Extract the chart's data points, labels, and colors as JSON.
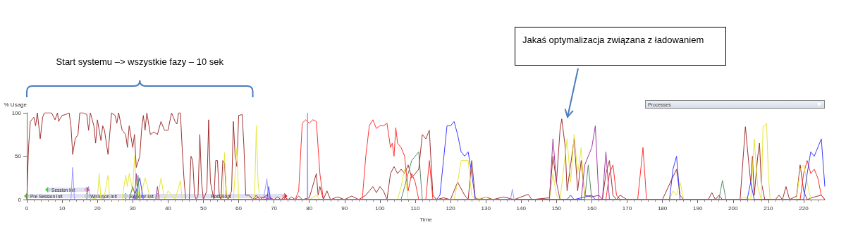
{
  "chart_data": {
    "type": "line",
    "xlabel": "Time",
    "ylabel": "% Usage",
    "xlim": [
      0,
      226
    ],
    "ylim": [
      0,
      100
    ],
    "xticks": [
      0,
      10,
      20,
      30,
      40,
      50,
      60,
      70,
      80,
      90,
      100,
      110,
      120,
      130,
      140,
      150,
      160,
      170,
      180,
      190,
      200,
      210,
      220
    ],
    "yticks": [
      0,
      50,
      100
    ],
    "grid": false,
    "marker": "none",
    "line_style": "solid",
    "series": [
      {
        "color": "#a03232",
        "x": [
          0,
          0.5,
          1,
          2,
          2.5,
          3,
          3.8,
          4.5,
          5,
          6,
          7,
          8,
          8.7,
          9,
          10,
          11,
          12,
          12.5,
          13,
          13.7,
          14.5,
          15,
          16,
          17,
          17.5,
          18,
          19,
          19.5,
          20,
          21,
          21.5,
          22,
          23,
          24,
          25,
          25.5,
          26,
          27,
          28,
          28.5,
          29,
          30,
          30.5,
          31,
          32,
          32.5,
          33,
          33.5,
          34,
          35,
          36,
          37,
          38,
          39,
          40,
          41,
          42,
          42.5,
          43,
          43.5,
          44,
          44.5,
          45,
          46,
          46.5,
          47,
          47.5,
          48,
          48.5,
          49,
          49.5,
          50,
          51,
          51.5,
          52,
          53,
          53.5,
          54,
          54.5,
          55,
          55.5,
          56,
          56.5,
          57,
          58,
          58.5,
          59,
          59.5,
          60,
          61,
          61.5,
          62,
          63,
          64,
          65,
          66,
          68,
          69,
          70,
          71,
          72,
          73,
          74,
          75,
          76,
          77,
          78,
          80,
          82,
          82.5,
          83,
          84,
          85,
          86,
          88,
          90,
          92,
          94,
          96,
          97,
          98,
          99,
          100,
          101,
          102,
          103,
          104,
          105,
          106,
          107,
          108,
          109,
          110,
          111,
          112,
          113,
          114,
          115,
          116,
          118,
          120,
          122,
          124,
          125,
          126,
          127,
          128,
          130,
          132,
          135,
          138,
          142,
          143,
          148,
          149,
          150,
          151,
          151.5,
          152.5,
          153,
          154,
          155,
          156,
          157,
          158,
          160,
          162,
          163,
          164,
          165,
          166,
          167,
          168,
          170,
          175,
          180,
          184,
          185,
          186,
          193,
          194,
          195,
          196,
          197,
          202,
          203.5,
          204.5,
          205,
          205.5,
          206,
          207,
          207.5,
          208,
          209,
          212,
          213,
          214,
          215,
          216,
          218,
          219,
          220,
          221,
          223,
          225,
          226
        ],
        "values": [
          0,
          60,
          90,
          95,
          85,
          100,
          70,
          95,
          100,
          100,
          100,
          92,
          100,
          90,
          97,
          98,
          100,
          85,
          52,
          70,
          75,
          100,
          100,
          98,
          80,
          100,
          85,
          65,
          92,
          68,
          85,
          80,
          52,
          100,
          97,
          88,
          100,
          80,
          75,
          60,
          85,
          60,
          75,
          37,
          50,
          80,
          97,
          80,
          100,
          75,
          78,
          75,
          90,
          80,
          80,
          100,
          90,
          87,
          100,
          100,
          60,
          25,
          0,
          0,
          50,
          45,
          5,
          0,
          5,
          75,
          20,
          0,
          10,
          92,
          20,
          0,
          45,
          45,
          5,
          0,
          45,
          42,
          5,
          0,
          10,
          90,
          50,
          38,
          97,
          98,
          60,
          5,
          5,
          0,
          5,
          0,
          5,
          2,
          0,
          3,
          0,
          3,
          0,
          3,
          0,
          4,
          0,
          2,
          30,
          5,
          15,
          0,
          10,
          0,
          3,
          0,
          4,
          0,
          5,
          10,
          15,
          8,
          15,
          10,
          0,
          30,
          38,
          30,
          35,
          30,
          40,
          25,
          30,
          35,
          75,
          70,
          80,
          5,
          0,
          2,
          0,
          20,
          5,
          0,
          45,
          2,
          0,
          3,
          0,
          3,
          0,
          6,
          0,
          2,
          50,
          20,
          80,
          93,
          60,
          10,
          40,
          70,
          10,
          45,
          5,
          3,
          5,
          0,
          30,
          45,
          5,
          0,
          5,
          0,
          0,
          0,
          35,
          5,
          0,
          0,
          8,
          0,
          5,
          0,
          0,
          84,
          40,
          20,
          50,
          5,
          50,
          65,
          20,
          0,
          0,
          5,
          0,
          15,
          0,
          4,
          40,
          10,
          0,
          3,
          5,
          0
        ]
      },
      {
        "color": "#ff3333",
        "x": [
          0,
          64,
          66,
          70,
          76,
          77,
          78,
          79,
          80,
          81,
          82,
          83,
          84,
          95,
          96,
          97,
          98,
          99,
          100,
          101,
          102,
          103,
          103.5,
          104,
          104.5,
          105,
          106,
          107,
          108,
          109,
          110,
          111,
          113,
          114,
          115,
          160,
          164,
          165,
          166,
          167,
          168,
          173,
          174.5,
          175.5,
          200,
          219,
          220,
          221,
          222,
          223,
          224,
          225,
          226
        ],
        "values": [
          0,
          0,
          3,
          0,
          0,
          10,
          88,
          92,
          88,
          92,
          90,
          30,
          0,
          0,
          50,
          85,
          92,
          82,
          85,
          85,
          88,
          60,
          65,
          50,
          83,
          65,
          60,
          50,
          10,
          30,
          20,
          0,
          0,
          45,
          0,
          0,
          0,
          30,
          40,
          5,
          0,
          0,
          60,
          0,
          0,
          0,
          30,
          45,
          30,
          35,
          25,
          5,
          0
        ]
      },
      {
        "color": "#e6e63c",
        "x": [
          18,
          20,
          20.5,
          21,
          22,
          23,
          23.5,
          27,
          28,
          28.5,
          29,
          30,
          30.5,
          31,
          32,
          33.5,
          34,
          35,
          37,
          38,
          39,
          40,
          41,
          42,
          43.5,
          44,
          48,
          55.5,
          56,
          56.5,
          57,
          58.5,
          59.5,
          60,
          64.5,
          65,
          65.5,
          66,
          80,
          82,
          83,
          105,
          106,
          107,
          108,
          121,
          122,
          123,
          124,
          125,
          126,
          127,
          130,
          131,
          148,
          149,
          150,
          151,
          153,
          154,
          155,
          156,
          157,
          158,
          182,
          183,
          184,
          185,
          186,
          202,
          203,
          205,
          206,
          207,
          208,
          208.5,
          209,
          209.5,
          210,
          210.5,
          218,
          219,
          220,
          221,
          222
        ],
        "values": [
          0,
          2,
          30,
          0,
          5,
          28,
          0,
          0,
          28,
          15,
          30,
          10,
          50,
          20,
          0,
          25,
          18,
          0,
          0,
          25,
          0,
          10,
          5,
          0,
          22,
          0,
          0,
          0,
          54,
          10,
          0,
          0,
          60,
          0,
          0,
          85,
          20,
          0,
          0,
          5,
          0,
          0,
          15,
          35,
          0,
          0,
          20,
          45,
          45,
          45,
          5,
          0,
          3,
          0,
          0,
          30,
          5,
          0,
          70,
          20,
          75,
          30,
          60,
          0,
          0,
          10,
          5,
          20,
          0,
          0,
          3,
          0,
          70,
          15,
          0,
          85,
          85,
          88,
          30,
          0,
          0,
          35,
          40,
          20,
          0
        ]
      },
      {
        "color": "#3c3cff",
        "x": [
          30,
          31,
          32,
          33,
          68,
          68.5,
          69,
          116,
          117,
          118,
          119,
          120,
          121,
          122,
          123,
          124,
          125,
          126,
          127,
          153,
          154,
          155,
          160,
          161,
          182,
          183,
          184,
          185,
          204,
          205,
          206,
          220,
          221,
          222,
          223,
          224,
          225,
          226
        ],
        "values": [
          0,
          10,
          25,
          0,
          0,
          15,
          0,
          0,
          5,
          45,
          85,
          85,
          90,
          75,
          55,
          50,
          55,
          30,
          0,
          0,
          5,
          0,
          5,
          0,
          0,
          35,
          50,
          0,
          0,
          20,
          0,
          0,
          30,
          55,
          50,
          60,
          70,
          15
        ]
      },
      {
        "color": "#a03ca0",
        "x": [
          30.5,
          31,
          31.5,
          36.5,
          37,
          37.5,
          148,
          149,
          150,
          151,
          157,
          158,
          159,
          160,
          161,
          162,
          163,
          164,
          165
        ],
        "values": [
          0,
          30,
          0,
          0,
          15,
          0,
          0,
          70,
          20,
          0,
          0,
          40,
          50,
          60,
          85,
          0,
          0,
          55,
          0
        ]
      },
      {
        "color": "#5a8a6a",
        "x": [
          29,
          30,
          31,
          31.5,
          32,
          106,
          107,
          108,
          109,
          110,
          111,
          112,
          158,
          159,
          160,
          196,
          197,
          198
        ],
        "values": [
          0,
          15,
          0,
          28,
          0,
          0,
          15,
          30,
          45,
          50,
          55,
          0,
          0,
          40,
          0,
          0,
          22,
          0
        ]
      },
      {
        "color": "#9999ff",
        "x": [
          12.5,
          13,
          13.5,
          17,
          17.5,
          18,
          67,
          68,
          68.5,
          79.4,
          79.5,
          79.6,
          137,
          137.5,
          138
        ],
        "values": [
          0,
          37,
          0,
          0,
          15,
          0,
          0,
          24,
          0,
          0,
          100,
          0,
          0,
          12,
          0
        ]
      }
    ],
    "bands": [
      {
        "axis": "x",
        "from": 0,
        "to": 17,
        "label": "Pre Session Init",
        "color": "#d8d8f0"
      },
      {
        "axis": "x",
        "from": 6,
        "to": 17,
        "label": "Session Init",
        "color": "#d8d8f0"
      },
      {
        "axis": "x",
        "from": 17,
        "to": 28,
        "label": "Winlogon Init",
        "color": "#d8d8f0"
      },
      {
        "axis": "x",
        "from": 28,
        "to": 37,
        "label": "Explorer Init",
        "color": "#d8d8f0"
      },
      {
        "axis": "x",
        "from": 37,
        "to": 73,
        "label": "Post Boot",
        "color": "#d8d8f0"
      }
    ],
    "annotations": [
      "Start systemu –> wszystkie fazy – 10 sek",
      "Jakaś optymalizacja związana z ładowaniem",
      "Processes"
    ]
  }
}
